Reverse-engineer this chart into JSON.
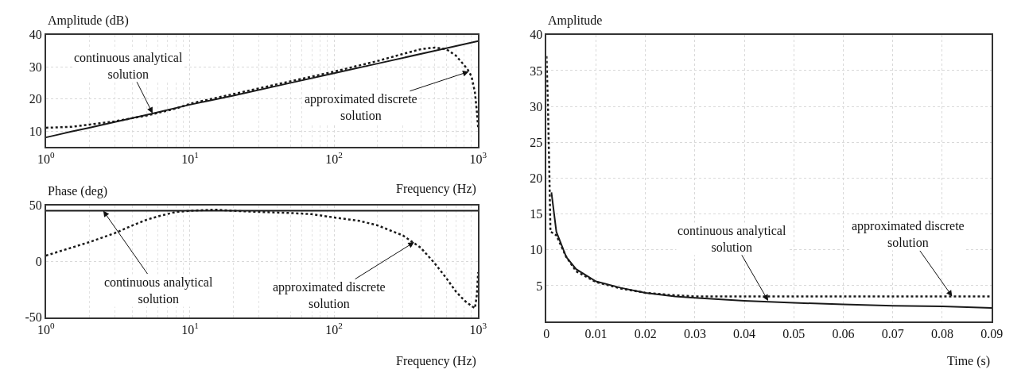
{
  "chart_data": [
    {
      "type": "line",
      "ylabel": "Amplitude (dB)",
      "xlabel": "Frequency (Hz)",
      "log": "x",
      "grid": true,
      "xlim": [
        1,
        1000
      ],
      "ylim": [
        5,
        40
      ],
      "xticks": [
        {
          "value": 1,
          "label": "10$^{0}$"
        },
        {
          "value": 10,
          "label": "10$^{1}$"
        },
        {
          "value": 100,
          "label": "10$^{2}$"
        },
        {
          "value": 1000,
          "label": "10$^{3}$"
        }
      ],
      "yticks": [
        10,
        20,
        30,
        40
      ],
      "series": [
        {
          "color": "#1a1a1a",
          "line_style": "solid",
          "x": [
            1,
            1.2,
            1.5,
            2,
            3,
            5,
            10,
            20,
            50,
            100,
            200,
            500,
            1000
          ],
          "values": [
            8,
            8.8,
            9.8,
            11,
            12.8,
            15,
            18.2,
            21,
            25,
            28,
            31,
            35,
            38
          ]
        },
        {
          "color": "#1a1a1a",
          "line_style": "dotted",
          "x": [
            1,
            1.5,
            2,
            3,
            5,
            8,
            10,
            20,
            50,
            100,
            200,
            300,
            400,
            500,
            600,
            700,
            800,
            850,
            900,
            950,
            980,
            1000
          ],
          "values": [
            11,
            11.3,
            12,
            13,
            14.8,
            17,
            18.5,
            21.5,
            25.5,
            28.5,
            31.8,
            34,
            35.5,
            36,
            35.5,
            33.5,
            30.5,
            29,
            27,
            22,
            16,
            11
          ]
        }
      ],
      "annotations": [
        {
          "text": "continuous analytical\nsolution",
          "x": 5.5,
          "y": 15.5
        },
        {
          "text": "approximated discrete\nsolution",
          "x": 861,
          "y": 28.5
        }
      ]
    },
    {
      "type": "line",
      "ylabel": "Phase (deg)",
      "xlabel": "Frequency (Hz)",
      "log": "x",
      "grid": true,
      "xlim": [
        1,
        1000
      ],
      "ylim": [
        -50,
        50
      ],
      "xticks": [
        {
          "value": 1,
          "label": "10$^{0}$"
        },
        {
          "value": 10,
          "label": "10$^{1}$"
        },
        {
          "value": 100,
          "label": "10$^{2}$"
        },
        {
          "value": 1000,
          "label": "10$^{3}$"
        }
      ],
      "yticks": [
        -50,
        0,
        50
      ],
      "series": [
        {
          "color": "#1a1a1a",
          "line_style": "solid",
          "x": [
            1,
            1000
          ],
          "values": [
            45,
            45
          ]
        },
        {
          "color": "#1a1a1a",
          "line_style": "dotted",
          "x": [
            1,
            1.5,
            2,
            3,
            4,
            5,
            6,
            8,
            10,
            15,
            20,
            30,
            50,
            70,
            100,
            150,
            200,
            300,
            400,
            500,
            600,
            700,
            800,
            900,
            950,
            980,
            1000
          ],
          "values": [
            5,
            12,
            17,
            25,
            32,
            37,
            40,
            44,
            45,
            46,
            45,
            44,
            43,
            42,
            39,
            36,
            32,
            23,
            12,
            -2,
            -15,
            -27,
            -35,
            -40,
            -42,
            -30,
            -10
          ]
        }
      ],
      "annotations": [
        {
          "text": "continuous analytical\nsolution",
          "x": 2.5,
          "y": 45
        },
        {
          "text": "approximated discrete\nsolution",
          "x": 360,
          "y": 17
        }
      ]
    },
    {
      "type": "line",
      "ylabel": "Amplitude",
      "xlabel": "Time (s)",
      "grid": true,
      "xlim": [
        0,
        0.09
      ],
      "ylim": [
        0,
        40
      ],
      "xticks": [
        0,
        0.01,
        0.02,
        0.03,
        0.04,
        0.05,
        0.06,
        0.07,
        0.08,
        0.09
      ],
      "yticks": [
        5,
        10,
        15,
        20,
        25,
        30,
        35,
        40
      ],
      "series": [
        {
          "color": "#1a1a1a",
          "line_style": "solid",
          "x": [
            0.001,
            0.002,
            0.004,
            0.006,
            0.01,
            0.015,
            0.02,
            0.026,
            0.03,
            0.04,
            0.05,
            0.06,
            0.07,
            0.08,
            0.09
          ],
          "values": [
            18,
            12.5,
            9,
            7.3,
            5.6,
            4.7,
            4,
            3.5,
            3.3,
            2.9,
            2.6,
            2.4,
            2.2,
            2.1,
            1.9
          ]
        },
        {
          "color": "#1a1a1a",
          "line_style": "dotted",
          "x": [
            0,
            0.0003,
            0.0006,
            0.0008,
            0.0015,
            0.002,
            0.004,
            0.006,
            0.01,
            0.015,
            0.02,
            0.025,
            0.03,
            0.09
          ],
          "values": [
            37,
            30,
            20,
            12.5,
            12.3,
            12,
            9,
            7,
            5.5,
            4.6,
            4,
            3.7,
            3.5,
            3.5
          ]
        }
      ],
      "annotations": [
        {
          "text": "continuous analytical\nsolution",
          "x": 0.0448,
          "y": 2.9
        },
        {
          "text": "approximated discrete\nsolution",
          "x": 0.082,
          "y": 3.5
        }
      ]
    }
  ]
}
